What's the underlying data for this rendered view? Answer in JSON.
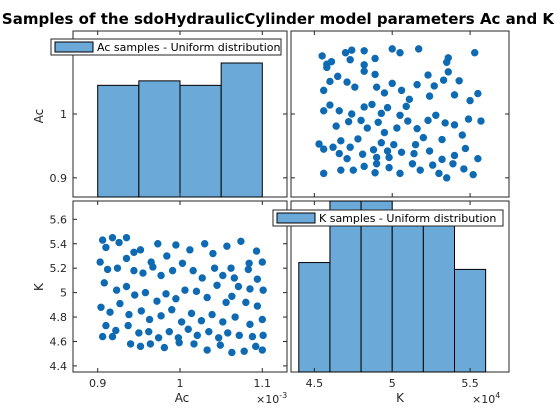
{
  "title": "Samples of the sdoHydraulicCylinder model parameters Ac and K",
  "colors": {
    "fill": "#6aa9d8",
    "edge": "#000000",
    "marker": "#0d6ab3",
    "axis": "#262626",
    "background": "#ffffff"
  },
  "labels": {
    "x_ac": "Ac",
    "x_k": "K",
    "y_ac": "Ac",
    "y_k": "K",
    "exp_ac": "×10",
    "exp_ac_power": "-3",
    "exp_k": "×10",
    "exp_k_power": "4"
  },
  "chart_data": [
    {
      "type": "bar",
      "panel": "top-left",
      "legend": "Ac samples - Uniform distribution",
      "legend_position": "top",
      "bin_edges": [
        0.0009,
        0.00095,
        0.001,
        0.00105,
        0.0011
      ],
      "counts": [
        25,
        26,
        25,
        30
      ],
      "ylim": [
        0.00087,
        0.00113
      ],
      "yticks": [
        0.0009,
        0.001
      ],
      "ytick_labels": [
        "0.9",
        "1"
      ],
      "ylabel": "Ac",
      "exponent_label": "×10-3"
    },
    {
      "type": "scatter",
      "panel": "top-right",
      "series": "Ac vs K samples",
      "xlim": [
        43500,
        57500
      ],
      "ylim": [
        0.00087,
        0.00113
      ],
      "points": [
        [
          45500,
          0.001091
        ],
        [
          45800,
          0.001078
        ],
        [
          46100,
          0.001082
        ],
        [
          47000,
          0.001096
        ],
        [
          47300,
          0.001085
        ],
        [
          47400,
          0.0011
        ],
        [
          48200,
          0.001099
        ],
        [
          48900,
          0.001087
        ],
        [
          50000,
          0.001102
        ],
        [
          50500,
          0.001096
        ],
        [
          51700,
          0.001102
        ],
        [
          53600,
          0.001088
        ],
        [
          55300,
          0.001096
        ],
        [
          53500,
          0.001081
        ],
        [
          48200,
          0.001077
        ],
        [
          45800,
          0.001073
        ],
        [
          46000,
          0.001051
        ],
        [
          45600,
          0.001037
        ],
        [
          46500,
          0.001059
        ],
        [
          47100,
          0.00105
        ],
        [
          47600,
          0.001042
        ],
        [
          48200,
          0.001067
        ],
        [
          48900,
          0.001062
        ],
        [
          49000,
          0.001042
        ],
        [
          49500,
          0.001033
        ],
        [
          50000,
          0.001048
        ],
        [
          50600,
          0.001037
        ],
        [
          51100,
          0.001023
        ],
        [
          51600,
          0.001046
        ],
        [
          52300,
          0.001061
        ],
        [
          52700,
          0.001044
        ],
        [
          53300,
          0.001053
        ],
        [
          53600,
          0.001066
        ],
        [
          54300,
          0.001052
        ],
        [
          55000,
          0.001021
        ],
        [
          55500,
          0.001032
        ],
        [
          54000,
          0.00103
        ],
        [
          52400,
          0.001028
        ],
        [
          50900,
          0.001012
        ],
        [
          50500,
          0.000998
        ],
        [
          49700,
          0.00101
        ],
        [
          49300,
          0.001001
        ],
        [
          48700,
          0.001015
        ],
        [
          48200,
          0.001011
        ],
        [
          47400,
          0.001
        ],
        [
          46600,
          0.001005
        ],
        [
          46000,
          0.001014
        ],
        [
          45600,
          0.001005
        ],
        [
          46400,
          0.000981
        ],
        [
          47200,
          0.000988
        ],
        [
          48000,
          0.00099
        ],
        [
          48400,
          0.000978
        ],
        [
          49100,
          0.000987
        ],
        [
          49500,
          0.000971
        ],
        [
          50300,
          0.000978
        ],
        [
          51000,
          0.000989
        ],
        [
          51600,
          0.000977
        ],
        [
          52300,
          0.00099
        ],
        [
          52800,
          0.000998
        ],
        [
          53400,
          0.000986
        ],
        [
          54000,
          0.000983
        ],
        [
          54900,
          0.000992
        ],
        [
          55700,
          0.000989
        ],
        [
          54500,
          0.000967
        ],
        [
          53200,
          0.00096
        ],
        [
          52000,
          0.000963
        ],
        [
          51500,
          0.000952
        ],
        [
          50100,
          0.000952
        ],
        [
          49700,
          0.000942
        ],
        [
          49300,
          0.000955
        ],
        [
          48800,
          0.000944
        ],
        [
          47800,
          0.000961
        ],
        [
          47300,
          0.000948
        ],
        [
          46700,
          0.000958
        ],
        [
          46200,
          0.000948
        ],
        [
          45600,
          0.000945
        ],
        [
          45300,
          0.000953
        ],
        [
          46600,
          0.000938
        ],
        [
          47100,
          0.00093
        ],
        [
          48100,
          0.000937
        ],
        [
          49000,
          0.000932
        ],
        [
          49800,
          0.000932
        ],
        [
          50600,
          0.00094
        ],
        [
          51400,
          0.000938
        ],
        [
          52400,
          0.000942
        ],
        [
          53200,
          0.000929
        ],
        [
          54000,
          0.000935
        ],
        [
          54700,
          0.000946
        ],
        [
          55500,
          0.00093
        ],
        [
          54600,
          0.000914
        ],
        [
          53900,
          0.000922
        ],
        [
          53000,
          0.000907
        ],
        [
          51800,
          0.000912
        ],
        [
          51300,
          0.000922
        ],
        [
          50500,
          0.000907
        ],
        [
          49800,
          0.000916
        ],
        [
          48900,
          0.000908
        ],
        [
          48200,
          0.000918
        ],
        [
          47500,
          0.000912
        ],
        [
          46700,
          0.000912
        ],
        [
          45600,
          0.000907
        ],
        [
          53500,
          0.0009
        ],
        [
          55200,
          0.000905
        ],
        [
          52600,
          0.00092
        ],
        [
          49000,
          0.000922
        ]
      ]
    },
    {
      "type": "scatter",
      "panel": "bottom-left",
      "series": "K vs Ac samples",
      "xlim": [
        0.00087,
        0.00113
      ],
      "ylim": [
        43500,
        57500
      ],
      "xticks": [
        0.0009,
        0.001,
        0.0011
      ],
      "xtick_labels": [
        "0.9",
        "1",
        "1.1"
      ],
      "yticks": [
        44000,
        46000,
        48000,
        50000,
        52000,
        54000,
        56000
      ],
      "ytick_labels": [
        "4.4",
        "4.6",
        "4.8",
        "5",
        "5.2",
        "5.4",
        "5.6"
      ],
      "xlabel": "Ac",
      "ylabel": "K",
      "exponent_x": "×10-3",
      "points": [
        [
          0.000906,
          54300
        ],
        [
          0.00091,
          53700
        ],
        [
          0.000918,
          54500
        ],
        [
          0.000926,
          54100
        ],
        [
          0.000935,
          54500
        ],
        [
          0.000944,
          53300
        ],
        [
          0.000952,
          53500
        ],
        [
          0.000965,
          52500
        ],
        [
          0.000973,
          54000
        ],
        [
          0.000984,
          53000
        ],
        [
          0.000995,
          53900
        ],
        [
          0.001012,
          53500
        ],
        [
          0.00103,
          54000
        ],
        [
          0.00104,
          53200
        ],
        [
          0.001057,
          53800
        ],
        [
          0.001074,
          54200
        ],
        [
          0.001093,
          53400
        ],
        [
          0.0011,
          52500
        ],
        [
          0.001084,
          52400
        ],
        [
          0.001062,
          52000
        ],
        [
          0.000903,
          52500
        ],
        [
          0.000912,
          51900
        ],
        [
          0.000924,
          52000
        ],
        [
          0.000935,
          52800
        ],
        [
          0.000944,
          51800
        ],
        [
          0.000955,
          51600
        ],
        [
          0.000967,
          52100
        ],
        [
          0.000977,
          51400
        ],
        [
          0.000991,
          51800
        ],
        [
          0.001003,
          52400
        ],
        [
          0.001016,
          51800
        ],
        [
          0.001027,
          51200
        ],
        [
          0.001042,
          52000
        ],
        [
          0.001052,
          51400
        ],
        [
          0.001066,
          51200
        ],
        [
          0.001083,
          51900
        ],
        [
          0.001094,
          51100
        ],
        [
          0.001101,
          50200
        ],
        [
          0.001085,
          50300
        ],
        [
          0.001071,
          50500
        ],
        [
          0.000908,
          50800
        ],
        [
          0.000923,
          50200
        ],
        [
          0.000935,
          50500
        ],
        [
          0.000945,
          49800
        ],
        [
          0.000958,
          50000
        ],
        [
          0.000972,
          49300
        ],
        [
          0.000983,
          49900
        ],
        [
          0.000995,
          49500
        ],
        [
          0.001006,
          50200
        ],
        [
          0.00102,
          50100
        ],
        [
          0.001033,
          49600
        ],
        [
          0.001045,
          50600
        ],
        [
          0.001056,
          49200
        ],
        [
          0.001063,
          49700
        ],
        [
          0.00108,
          49200
        ],
        [
          0.001094,
          48900
        ],
        [
          0.000904,
          48800
        ],
        [
          0.000915,
          48400
        ],
        [
          0.000927,
          49100
        ],
        [
          0.000938,
          48200
        ],
        [
          0.000953,
          48500
        ],
        [
          0.000963,
          47800
        ],
        [
          0.000977,
          48100
        ],
        [
          0.00099,
          48600
        ],
        [
          0.001002,
          47600
        ],
        [
          0.001014,
          48300
        ],
        [
          0.001026,
          47700
        ],
        [
          0.001039,
          48200
        ],
        [
          0.001052,
          47600
        ],
        [
          0.001067,
          48000
        ],
        [
          0.001085,
          47400
        ],
        [
          0.0011,
          47800
        ],
        [
          0.00091,
          47300
        ],
        [
          0.000922,
          46900
        ],
        [
          0.000937,
          47300
        ],
        [
          0.00095,
          46700
        ],
        [
          0.000962,
          46800
        ],
        [
          0.000974,
          46300
        ],
        [
          0.000987,
          46800
        ],
        [
          0.000998,
          46300
        ],
        [
          0.00101,
          47000
        ],
        [
          0.001021,
          46500
        ],
        [
          0.001035,
          46800
        ],
        [
          0.001047,
          46300
        ],
        [
          0.001058,
          46700
        ],
        [
          0.001072,
          46500
        ],
        [
          0.001088,
          46400
        ],
        [
          0.001101,
          46500
        ],
        [
          0.000906,
          46400
        ],
        [
          0.000918,
          46400
        ],
        [
          0.00094,
          45800
        ],
        [
          0.000952,
          45600
        ],
        [
          0.000964,
          45800
        ],
        [
          0.000981,
          45500
        ],
        [
          0.000999,
          45900
        ],
        [
          0.001017,
          45800
        ],
        [
          0.001033,
          45300
        ],
        [
          0.001049,
          45700
        ],
        [
          0.001063,
          45100
        ],
        [
          0.001078,
          45200
        ],
        [
          0.001092,
          45600
        ],
        [
          0.0011,
          45300
        ]
      ]
    },
    {
      "type": "bar",
      "panel": "bottom-right",
      "legend": "K samples - Uniform distribution",
      "legend_position": "top",
      "bin_edges": [
        44000,
        46000,
        48000,
        50000,
        52000,
        54000,
        56000
      ],
      "counts": [
        16,
        26,
        26,
        22,
        22,
        15
      ],
      "ylim": [
        0,
        25
      ],
      "xlim": [
        43500,
        57500
      ],
      "xticks": [
        45000,
        50000,
        55000
      ],
      "xtick_labels": [
        "4.5",
        "5",
        "5.5"
      ],
      "xlabel": "K",
      "exponent_x": "×10^4"
    }
  ]
}
